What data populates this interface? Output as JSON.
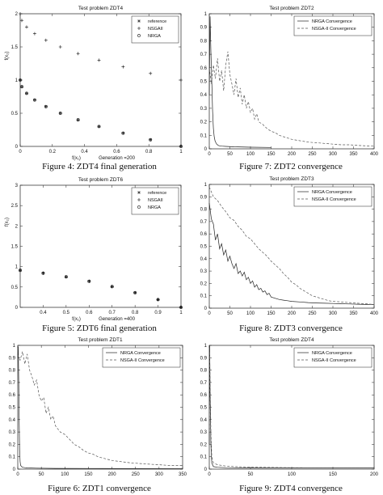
{
  "colors": {
    "axis": "#222222",
    "ink": "#111111",
    "nrga": "#222222",
    "nsga": "#555555"
  },
  "panels": [
    {
      "id": "p1",
      "caption": "Figure 4: ZDT4 final generation",
      "chart_data": {
        "type": "scatter",
        "title": "Test problem ZDT4",
        "xlabel": "f(x₁)",
        "ylabel": "f(x₂)",
        "xlim": [
          0,
          1
        ],
        "ylim": [
          0,
          2
        ],
        "xticks": [
          0,
          0.2,
          0.4,
          0.6,
          0.8,
          1
        ],
        "yticks": [
          0,
          0.5,
          1,
          1.5,
          2
        ],
        "xtick_labels": [
          "0",
          "0.2",
          "0.4",
          "0.6",
          "0.8",
          "1"
        ],
        "ytick_labels": [
          "0",
          "0.5",
          "1",
          "1.5",
          "2"
        ],
        "annotation": "Generation =200",
        "legend_position": "top-right",
        "series": [
          {
            "name": "reference",
            "marker": "star",
            "x": [
              0,
              0.01,
              0.04,
              0.09,
              0.16,
              0.25,
              0.36,
              0.49,
              0.64,
              0.81,
              1.0
            ],
            "y": [
              1.0,
              0.9,
              0.8,
              0.7,
              0.6,
              0.5,
              0.4,
              0.3,
              0.2,
              0.1,
              0.0
            ]
          },
          {
            "name": "NSGAII",
            "marker": "plus",
            "x": [
              0,
              0.01,
              0.04,
              0.09,
              0.16,
              0.25,
              0.36,
              0.49,
              0.64,
              0.81,
              1.0
            ],
            "y": [
              2.0,
              1.9,
              1.8,
              1.7,
              1.6,
              1.5,
              1.4,
              1.3,
              1.2,
              1.1,
              1.0
            ]
          },
          {
            "name": "NRGA",
            "marker": "circle",
            "x": [
              0,
              0.01,
              0.04,
              0.09,
              0.16,
              0.25,
              0.36,
              0.49,
              0.64,
              0.81,
              1.0
            ],
            "y": [
              1.0,
              0.9,
              0.8,
              0.7,
              0.6,
              0.5,
              0.4,
              0.3,
              0.2,
              0.1,
              0.0
            ]
          }
        ]
      }
    },
    {
      "id": "p2",
      "caption": "Figure 7: ZDT2 convergence",
      "chart_data": {
        "type": "line",
        "title": "Test problem ZDT2",
        "xlim": [
          0,
          400
        ],
        "ylim": [
          0,
          1
        ],
        "xticks": [
          0,
          50,
          100,
          150,
          200,
          250,
          300,
          350,
          400
        ],
        "yticks": [
          0,
          0.1,
          0.2,
          0.3,
          0.4,
          0.5,
          0.6,
          0.7,
          0.8,
          0.9,
          1
        ],
        "xtick_labels": [
          "0",
          "50",
          "100",
          "150",
          "200",
          "250",
          "300",
          "350",
          "400"
        ],
        "ytick_labels": [
          "0",
          "0.1",
          "0.2",
          "0.3",
          "0.4",
          "0.5",
          "0.6",
          "0.7",
          "0.8",
          "0.9",
          "1"
        ],
        "legend_position": "top-right",
        "series": [
          {
            "name": "NRGA Convergence",
            "style": "solid",
            "x": [
              0,
              2,
              4,
              6,
              8,
              10,
              12,
              14,
              16,
              18,
              20,
              22,
              25,
              30,
              40,
              60,
              100,
              150
            ],
            "y": [
              0.4,
              0.98,
              0.72,
              0.5,
              0.28,
              0.15,
              0.09,
              0.06,
              0.045,
              0.035,
              0.03,
              0.025,
              0.022,
              0.02,
              0.018,
              0.015,
              0.012,
              0.01
            ]
          },
          {
            "name": "NSGA-II Convergence",
            "style": "dashed",
            "x": [
              0,
              5,
              10,
              15,
              20,
              25,
              30,
              35,
              40,
              45,
              50,
              55,
              60,
              65,
              70,
              75,
              80,
              85,
              90,
              95,
              100,
              105,
              110,
              115,
              120,
              130,
              140,
              150,
              160,
              170,
              180,
              190,
              200,
              220,
              240,
              260,
              280,
              300,
              320,
              340,
              360,
              380,
              400
            ],
            "y": [
              0.6,
              0.48,
              0.62,
              0.52,
              0.67,
              0.5,
              0.58,
              0.43,
              0.62,
              0.72,
              0.55,
              0.48,
              0.4,
              0.52,
              0.38,
              0.45,
              0.33,
              0.4,
              0.3,
              0.35,
              0.27,
              0.3,
              0.22,
              0.26,
              0.2,
              0.18,
              0.15,
              0.13,
              0.12,
              0.1,
              0.09,
              0.08,
              0.07,
              0.06,
              0.05,
              0.045,
              0.04,
              0.035,
              0.03,
              0.03,
              0.025,
              0.022,
              0.02
            ]
          }
        ]
      }
    },
    {
      "id": "p3",
      "caption": "Figure 5: ZDT6 final generation",
      "chart_data": {
        "type": "scatter",
        "title": "Test problem ZDT6",
        "xlabel": "f(x₁)",
        "ylabel": "f(x₂)",
        "xlim": [
          0.3,
          1
        ],
        "ylim": [
          0,
          3
        ],
        "xticks": [
          0.4,
          0.5,
          0.6,
          0.7,
          0.8,
          0.9,
          1
        ],
        "yticks": [
          0,
          0.5,
          1,
          1.5,
          2,
          2.5,
          3
        ],
        "xtick_labels": [
          "0.4",
          "0.5",
          "0.6",
          "0.7",
          "0.8",
          "0.9",
          "1"
        ],
        "ytick_labels": [
          "0",
          "0.5",
          "1",
          "1.5",
          "2",
          "2.5",
          "3"
        ],
        "annotation": "Generation =400",
        "legend_position": "top-right",
        "series": [
          {
            "name": "reference",
            "marker": "star",
            "x": [
              0.3,
              0.4,
              0.5,
              0.6,
              0.7,
              0.8,
              0.9,
              1.0
            ],
            "y": [
              0.91,
              0.84,
              0.75,
              0.64,
              0.51,
              0.36,
              0.19,
              0.0
            ]
          },
          {
            "name": "NSGAII",
            "marker": "plus",
            "x": [
              0.3,
              0.4,
              0.5,
              0.6,
              0.7,
              0.8,
              0.9,
              1.0
            ],
            "y": [
              0.91,
              0.84,
              0.75,
              0.64,
              0.51,
              0.36,
              0.19,
              0.0
            ]
          },
          {
            "name": "NRGA",
            "marker": "circle",
            "x": [
              0.3,
              0.4,
              0.5,
              0.6,
              0.7,
              0.8,
              0.9,
              1.0
            ],
            "y": [
              0.91,
              0.84,
              0.75,
              0.64,
              0.51,
              0.36,
              0.19,
              0.0
            ]
          }
        ]
      }
    },
    {
      "id": "p4",
      "caption": "Figure 8: ZDT3 convergence",
      "chart_data": {
        "type": "line",
        "title": "Test problem ZDT3",
        "xlim": [
          0,
          400
        ],
        "ylim": [
          0,
          1
        ],
        "xticks": [
          0,
          50,
          100,
          150,
          200,
          250,
          300,
          350,
          400
        ],
        "yticks": [
          0,
          0.1,
          0.2,
          0.3,
          0.4,
          0.5,
          0.6,
          0.7,
          0.8,
          0.9,
          1
        ],
        "xtick_labels": [
          "0",
          "50",
          "100",
          "150",
          "200",
          "250",
          "300",
          "350",
          "400"
        ],
        "ytick_labels": [
          "0",
          "0.1",
          "0.2",
          "0.3",
          "0.4",
          "0.5",
          "0.6",
          "0.7",
          "0.8",
          "0.9",
          "1"
        ],
        "legend_position": "top-right",
        "series": [
          {
            "name": "NRGA Convergence",
            "style": "solid",
            "x": [
              0,
              5,
              10,
              15,
              20,
              25,
              30,
              35,
              40,
              45,
              50,
              55,
              60,
              65,
              70,
              75,
              80,
              85,
              90,
              95,
              100,
              105,
              110,
              115,
              120,
              125,
              130,
              135,
              140,
              145,
              150,
              160,
              170,
              180,
              190,
              200,
              220,
              240,
              260,
              280,
              300,
              320,
              340,
              360,
              380,
              400
            ],
            "y": [
              0.85,
              0.72,
              0.68,
              0.55,
              0.6,
              0.48,
              0.52,
              0.43,
              0.47,
              0.38,
              0.42,
              0.36,
              0.32,
              0.36,
              0.28,
              0.3,
              0.26,
              0.29,
              0.23,
              0.25,
              0.2,
              0.22,
              0.17,
              0.19,
              0.15,
              0.16,
              0.13,
              0.14,
              0.11,
              0.12,
              0.09,
              0.08,
              0.07,
              0.065,
              0.06,
              0.055,
              0.05,
              0.045,
              0.042,
              0.04,
              0.038,
              0.036,
              0.034,
              0.032,
              0.03,
              0.03
            ]
          },
          {
            "name": "NSGA-II Convergence",
            "style": "dashed",
            "x": [
              0,
              10,
              20,
              30,
              40,
              50,
              60,
              70,
              80,
              90,
              100,
              110,
              120,
              130,
              140,
              150,
              160,
              170,
              180,
              190,
              200,
              210,
              220,
              230,
              240,
              250,
              260,
              270,
              280,
              290,
              300,
              320,
              340,
              360,
              380,
              400
            ],
            "y": [
              0.98,
              0.9,
              0.87,
              0.82,
              0.78,
              0.73,
              0.71,
              0.66,
              0.63,
              0.58,
              0.56,
              0.52,
              0.48,
              0.45,
              0.42,
              0.38,
              0.35,
              0.32,
              0.28,
              0.25,
              0.21,
              0.19,
              0.16,
              0.14,
              0.12,
              0.1,
              0.09,
              0.08,
              0.07,
              0.06,
              0.055,
              0.05,
              0.045,
              0.04,
              0.035,
              0.03
            ]
          }
        ]
      }
    },
    {
      "id": "p5",
      "caption": "Figure 6: ZDT1 convergence",
      "chart_data": {
        "type": "line",
        "title": "Test problem ZDT1",
        "xlim": [
          0,
          350
        ],
        "ylim": [
          0,
          1
        ],
        "xticks": [
          0,
          50,
          100,
          150,
          200,
          250,
          300,
          350
        ],
        "yticks": [
          0,
          0.1,
          0.2,
          0.3,
          0.4,
          0.5,
          0.6,
          0.7,
          0.8,
          0.9,
          1
        ],
        "xtick_labels": [
          "0",
          "50",
          "100",
          "150",
          "200",
          "250",
          "300",
          "350"
        ],
        "ytick_labels": [
          "0",
          "0.1",
          "0.2",
          "0.3",
          "0.4",
          "0.5",
          "0.6",
          "0.7",
          "0.8",
          "0.9",
          "1"
        ],
        "legend_position": "top-right",
        "series": [
          {
            "name": "NRGA Convergence",
            "style": "solid",
            "x": [
              0,
              1,
              2,
              3,
              4,
              5,
              6,
              8,
              10,
              15,
              20,
              40,
              80,
              150,
              250,
              350
            ],
            "y": [
              0.9,
              0.99,
              0.7,
              0.4,
              0.15,
              0.06,
              0.03,
              0.02,
              0.015,
              0.012,
              0.01,
              0.008,
              0.006,
              0.005,
              0.004,
              0.003
            ]
          },
          {
            "name": "NSGA-II Convergence",
            "style": "dashed",
            "x": [
              0,
              5,
              10,
              15,
              20,
              25,
              30,
              35,
              40,
              45,
              50,
              55,
              60,
              65,
              70,
              75,
              80,
              90,
              100,
              110,
              120,
              130,
              140,
              150,
              160,
              170,
              180,
              190,
              200,
              220,
              240,
              260,
              280,
              300,
              320,
              350
            ],
            "y": [
              0.92,
              0.88,
              0.95,
              0.85,
              0.93,
              0.8,
              0.75,
              0.68,
              0.72,
              0.6,
              0.55,
              0.58,
              0.45,
              0.5,
              0.4,
              0.43,
              0.35,
              0.3,
              0.28,
              0.24,
              0.2,
              0.18,
              0.15,
              0.13,
              0.12,
              0.1,
              0.09,
              0.08,
              0.07,
              0.06,
              0.05,
              0.045,
              0.04,
              0.035,
              0.03,
              0.03
            ]
          }
        ]
      }
    },
    {
      "id": "p6",
      "caption": "Figure 9: ZDT4 convergence",
      "chart_data": {
        "type": "line",
        "title": "Test problem ZDT4",
        "xlim": [
          0,
          200
        ],
        "ylim": [
          0,
          1
        ],
        "xticks": [
          0,
          50,
          100,
          150,
          200
        ],
        "yticks": [
          0,
          0.1,
          0.2,
          0.3,
          0.4,
          0.5,
          0.6,
          0.7,
          0.8,
          0.9,
          1
        ],
        "xtick_labels": [
          "0",
          "50",
          "100",
          "150",
          "200"
        ],
        "ytick_labels": [
          "0",
          "0.1",
          "0.2",
          "0.3",
          "0.4",
          "0.5",
          "0.6",
          "0.7",
          "0.8",
          "0.9",
          "1"
        ],
        "legend_position": "top-right",
        "series": [
          {
            "name": "NRGA Convergence",
            "style": "solid",
            "x": [
              0,
              0.5,
              1,
              2,
              3,
              5,
              10,
              20,
              50,
              100,
              150,
              200
            ],
            "y": [
              0.2,
              1.0,
              0.6,
              0.2,
              0.05,
              0.02,
              0.015,
              0.012,
              0.01,
              0.01,
              0.01,
              0.01
            ]
          },
          {
            "name": "NSGA-II Convergence",
            "style": "dashed",
            "x": [
              0,
              0.5,
              1,
              2,
              3,
              5,
              10,
              20,
              30,
              40,
              60,
              100,
              150,
              200
            ],
            "y": [
              0.3,
              0.95,
              0.7,
              0.3,
              0.1,
              0.05,
              0.035,
              0.025,
              0.02,
              0.018,
              0.015,
              0.012,
              0.01,
              0.01
            ]
          }
        ]
      }
    }
  ]
}
